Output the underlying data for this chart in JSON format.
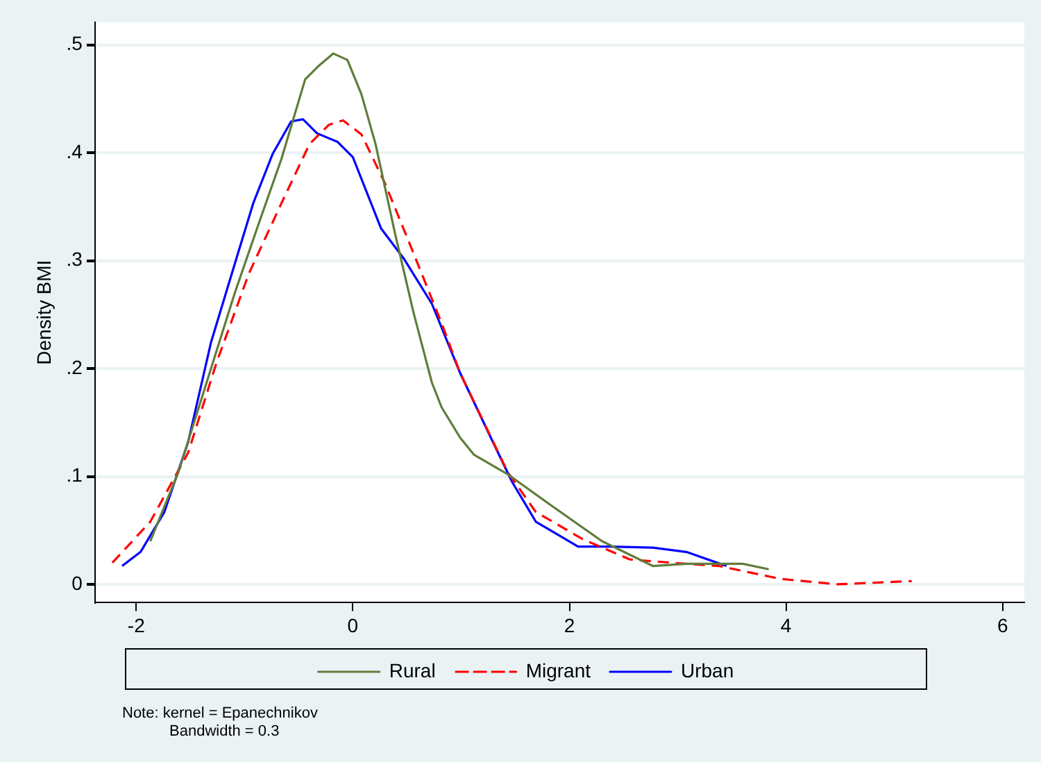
{
  "chart_data": {
    "type": "line",
    "ylabel": "Density BMI",
    "xlim": [
      -2.38,
      6.2
    ],
    "ylim": [
      -0.017,
      0.521
    ],
    "xticks": [
      -2,
      0,
      2,
      4,
      6
    ],
    "yticks": [
      {
        "value": 0,
        "label": "0"
      },
      {
        "value": 0.1,
        "label": ".1"
      },
      {
        "value": 0.2,
        "label": ".2"
      },
      {
        "value": 0.3,
        "label": ".3"
      },
      {
        "value": 0.4,
        "label": ".4"
      },
      {
        "value": 0.5,
        "label": ".5"
      }
    ],
    "grid": "y",
    "legend": "bottom",
    "marker": "none",
    "annotations": [
      "Note: kernel = Epanechnikov",
      "Bandwidth = 0.3"
    ],
    "series": [
      {
        "name": "Rural",
        "color": "#607d3b",
        "line_style": "solid",
        "x": [
          -1.87,
          -1.61,
          -1.35,
          -1.09,
          -0.87,
          -0.66,
          -0.44,
          -0.31,
          -0.18,
          -0.05,
          0.08,
          0.21,
          0.39,
          0.56,
          0.73,
          0.82,
          0.99,
          1.12,
          1.43,
          1.82,
          2.3,
          2.77,
          3.08,
          3.6,
          3.84
        ],
        "values": [
          0.04,
          0.104,
          0.187,
          0.27,
          0.334,
          0.394,
          0.468,
          0.481,
          0.492,
          0.486,
          0.454,
          0.408,
          0.325,
          0.252,
          0.187,
          0.164,
          0.136,
          0.12,
          0.102,
          0.074,
          0.04,
          0.017,
          0.019,
          0.019,
          0.014
        ]
      },
      {
        "name": "Migrant",
        "color": "#ff0000",
        "line_style": "dashed",
        "x": [
          -2.22,
          -1.87,
          -1.52,
          -1.26,
          -0.96,
          -0.66,
          -0.4,
          -0.22,
          -0.09,
          0.08,
          0.3,
          0.56,
          0.82,
          0.99,
          1.43,
          1.69,
          2.12,
          2.56,
          3.08,
          3.38,
          3.95,
          4.47,
          5.16
        ],
        "values": [
          0.02,
          0.058,
          0.122,
          0.205,
          0.288,
          0.353,
          0.408,
          0.426,
          0.43,
          0.417,
          0.371,
          0.307,
          0.242,
          0.196,
          0.104,
          0.067,
          0.042,
          0.023,
          0.019,
          0.017,
          0.005,
          0.0,
          0.003
        ]
      },
      {
        "name": "Urban",
        "color": "#0000ff",
        "line_style": "solid",
        "x": [
          -2.13,
          -1.96,
          -1.74,
          -1.52,
          -1.31,
          -1.09,
          -0.92,
          -0.74,
          -0.57,
          -0.46,
          -0.33,
          -0.14,
          0.0,
          0.26,
          0.47,
          0.73,
          0.99,
          1.25,
          1.47,
          1.69,
          2.08,
          2.38,
          2.77,
          3.08,
          3.45
        ],
        "values": [
          0.017,
          0.03,
          0.067,
          0.132,
          0.224,
          0.297,
          0.353,
          0.399,
          0.429,
          0.431,
          0.418,
          0.41,
          0.396,
          0.33,
          0.302,
          0.26,
          0.196,
          0.141,
          0.095,
          0.058,
          0.035,
          0.035,
          0.034,
          0.03,
          0.017
        ]
      }
    ]
  }
}
